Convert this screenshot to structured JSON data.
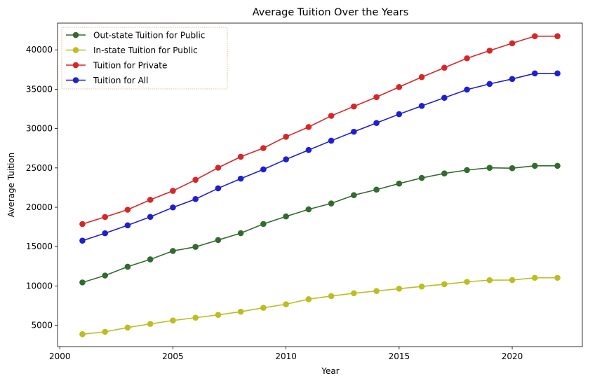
{
  "chart_data": {
    "type": "line",
    "title": "Average Tuition Over the Years",
    "xlabel": "Year",
    "ylabel": "Average Tuition",
    "xlim": [
      1999.9,
      2023.1
    ],
    "ylim": [
      2300,
      43400
    ],
    "xticks": [
      2000,
      2005,
      2010,
      2015,
      2020
    ],
    "yticks": [
      5000,
      10000,
      15000,
      20000,
      25000,
      30000,
      35000,
      40000
    ],
    "grid": false,
    "legend_position": "top-left",
    "x": [
      2001,
      2002,
      2003,
      2004,
      2005,
      2006,
      2007,
      2008,
      2009,
      2010,
      2011,
      2012,
      2013,
      2014,
      2015,
      2016,
      2017,
      2018,
      2019,
      2020,
      2021,
      2022
    ],
    "series": [
      {
        "name": "Out-state Tuition for Public",
        "color": "#336b2f",
        "values": [
          10450,
          11330,
          12450,
          13380,
          14450,
          14970,
          15840,
          16710,
          17880,
          18840,
          19740,
          20490,
          21540,
          22240,
          23010,
          23730,
          24300,
          24730,
          25010,
          24970,
          25270,
          25270
        ]
      },
      {
        "name": "In-state Tuition for Public",
        "color": "#bcbd22",
        "values": [
          3870,
          4180,
          4720,
          5180,
          5620,
          5970,
          6330,
          6730,
          7230,
          7680,
          8320,
          8720,
          9080,
          9360,
          9660,
          9930,
          10220,
          10530,
          10740,
          10760,
          11040,
          11040
        ]
      },
      {
        "name": "Tuition for Private",
        "color": "#d62728",
        "values": [
          17870,
          18770,
          19690,
          20950,
          22090,
          23490,
          25030,
          26420,
          27520,
          28960,
          30200,
          31620,
          32810,
          34000,
          35280,
          36540,
          37730,
          38930,
          39900,
          40840,
          41740,
          41740
        ]
      },
      {
        "name": "Tuition for All",
        "color": "#1f1fcf",
        "values": [
          15760,
          16700,
          17710,
          18780,
          19980,
          21040,
          22410,
          23640,
          24810,
          26090,
          27280,
          28460,
          29600,
          30710,
          31830,
          32880,
          33910,
          34950,
          35670,
          36300,
          37010,
          37010
        ]
      }
    ]
  }
}
